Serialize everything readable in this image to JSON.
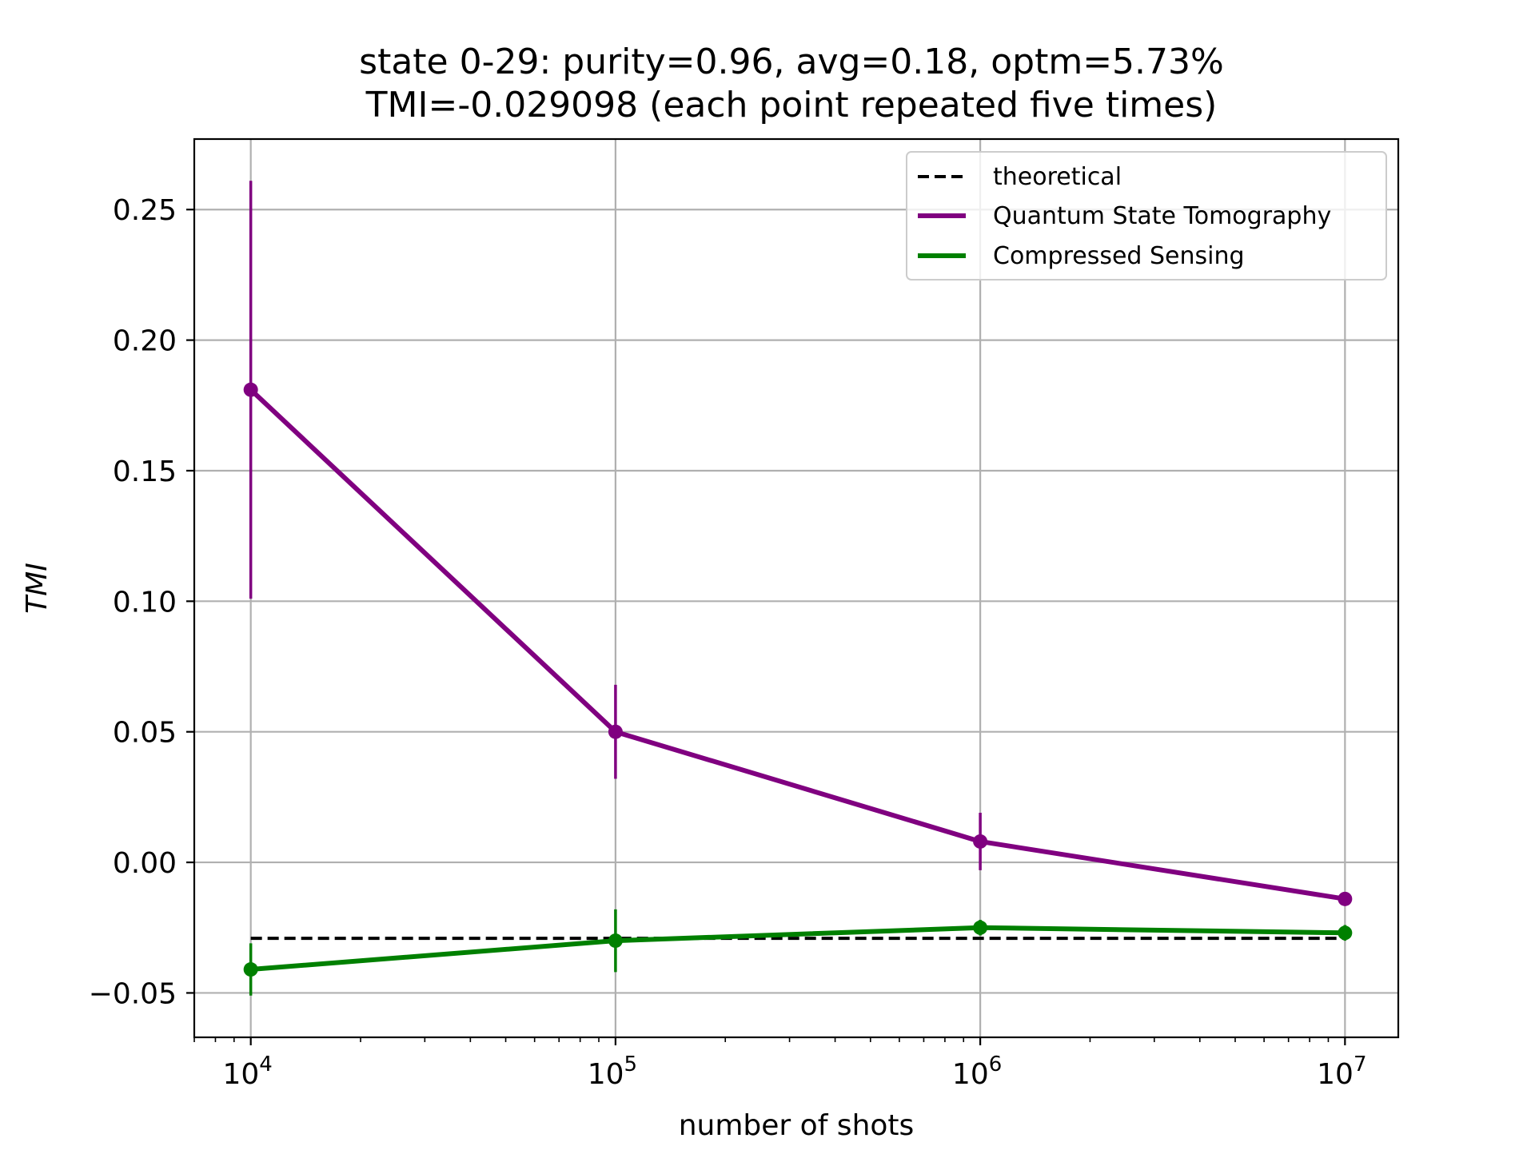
{
  "chart_data": {
    "type": "line",
    "title_line1": "state 0-29: purity=0.96, avg=0.18, optm=5.73%",
    "title_line2": "TMI=-0.029098 (each point repeated five times)",
    "xlabel": "number of shots",
    "ylabel": "TMI",
    "x_scale": "log",
    "xlim": [
      7000,
      14000000
    ],
    "ylim": [
      -0.067,
      0.277
    ],
    "x_ticks": [
      {
        "value": 10000,
        "base": "10",
        "exp": "4"
      },
      {
        "value": 100000,
        "base": "10",
        "exp": "5"
      },
      {
        "value": 1000000,
        "base": "10",
        "exp": "6"
      },
      {
        "value": 10000000,
        "base": "10",
        "exp": "7"
      }
    ],
    "y_ticks": [
      {
        "value": -0.05,
        "label": "−0.05"
      },
      {
        "value": 0.0,
        "label": "0.00"
      },
      {
        "value": 0.05,
        "label": "0.05"
      },
      {
        "value": 0.1,
        "label": "0.10"
      },
      {
        "value": 0.15,
        "label": "0.15"
      },
      {
        "value": 0.2,
        "label": "0.20"
      },
      {
        "value": 0.25,
        "label": "0.25"
      }
    ],
    "grid": true,
    "legend_position": "top-right",
    "series": [
      {
        "name": "theoretical",
        "color": "#000000",
        "style": "dashed",
        "x": [
          10000,
          10000000
        ],
        "y": [
          -0.029098,
          -0.029098
        ]
      },
      {
        "name": "Quantum State Tomography",
        "color": "#800080",
        "style": "solid",
        "x": [
          10000,
          100000,
          1000000,
          10000000
        ],
        "y": [
          0.181,
          0.05,
          0.008,
          -0.014
        ],
        "yerr": [
          0.08,
          0.018,
          0.011,
          0.001
        ]
      },
      {
        "name": "Compressed Sensing",
        "color": "#008000",
        "style": "solid",
        "x": [
          10000,
          100000,
          1000000,
          10000000
        ],
        "y": [
          -0.041,
          -0.03,
          -0.025,
          -0.027
        ],
        "yerr": [
          0.01,
          0.012,
          0.003,
          0.003
        ]
      }
    ]
  }
}
